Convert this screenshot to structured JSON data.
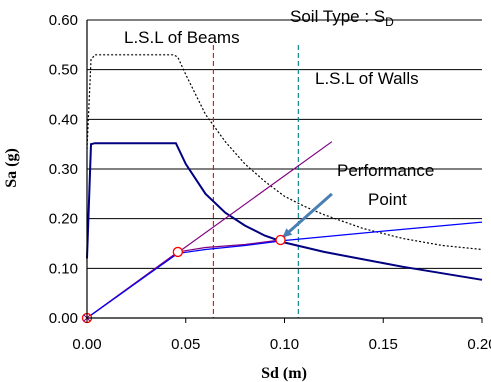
{
  "chart_data": {
    "type": "line",
    "xlabel": "Sd (m)",
    "ylabel": "Sa (g)",
    "xlim": [
      0,
      0.2
    ],
    "ylim": [
      0,
      0.6
    ],
    "x_ticks": [
      "0.00",
      "0.05",
      "0.10",
      "0.15",
      "0.20"
    ],
    "y_ticks": [
      "0.00",
      "0.10",
      "0.20",
      "0.30",
      "0.40",
      "0.50",
      "0.60"
    ],
    "grid": "horizontal",
    "annotations": {
      "soil_type": "Soil Type : S",
      "soil_type_sub": "D",
      "lsl_beams": "L.S.L of Beams",
      "lsl_walls": "L.S.L of Walls",
      "performance_point_line1": "Performance",
      "performance_point_line2": "Point"
    },
    "vlines": [
      {
        "name": "lsl_beams",
        "x": 0.064,
        "color": "#ff0000"
      },
      {
        "name": "lsl_walls",
        "x": 0.107,
        "color": "#008080"
      }
    ],
    "series": [
      {
        "key": "spectrum_dotted",
        "color": "#000000",
        "dash": "2,2",
        "points": [
          [
            0,
            0.34
          ],
          [
            0.002,
            0.52
          ],
          [
            0.004,
            0.53
          ],
          [
            0.044,
            0.53
          ],
          [
            0.046,
            0.525
          ],
          [
            0.05,
            0.49
          ],
          [
            0.06,
            0.41
          ],
          [
            0.07,
            0.355
          ],
          [
            0.08,
            0.31
          ],
          [
            0.09,
            0.275
          ],
          [
            0.1,
            0.245
          ],
          [
            0.11,
            0.225
          ],
          [
            0.12,
            0.208
          ],
          [
            0.14,
            0.18
          ],
          [
            0.16,
            0.16
          ],
          [
            0.18,
            0.146
          ],
          [
            0.2,
            0.138
          ]
        ]
      },
      {
        "key": "spectrum_reduced",
        "color": "#000080",
        "points": [
          [
            0,
            0.12
          ],
          [
            0.002,
            0.35
          ],
          [
            0.004,
            0.352
          ],
          [
            0.045,
            0.352
          ],
          [
            0.05,
            0.31
          ],
          [
            0.06,
            0.25
          ],
          [
            0.07,
            0.212
          ],
          [
            0.08,
            0.186
          ],
          [
            0.09,
            0.166
          ],
          [
            0.1,
            0.152
          ],
          [
            0.12,
            0.133
          ],
          [
            0.14,
            0.118
          ],
          [
            0.16,
            0.103
          ],
          [
            0.18,
            0.09
          ],
          [
            0.2,
            0.077
          ]
        ]
      },
      {
        "key": "initial_stiffness",
        "color": "#800080",
        "points": [
          [
            0,
            0
          ],
          [
            0.124,
            0.355
          ]
        ]
      },
      {
        "key": "capacity_purple",
        "color": "#800080",
        "points": [
          [
            0,
            0
          ],
          [
            0.046,
            0.133
          ],
          [
            0.06,
            0.142
          ],
          [
            0.08,
            0.148
          ],
          [
            0.098,
            0.157
          ]
        ]
      },
      {
        "key": "capacity_blue",
        "color": "#0000ff",
        "points": [
          [
            0,
            0
          ],
          [
            0.046,
            0.13
          ],
          [
            0.06,
            0.138
          ],
          [
            0.08,
            0.146
          ],
          [
            0.1,
            0.156
          ],
          [
            0.15,
            0.175
          ],
          [
            0.2,
            0.193
          ]
        ]
      }
    ],
    "markers": [
      {
        "x": 0,
        "y": 0,
        "style": "circle-x"
      },
      {
        "x": 0.046,
        "y": 0.133,
        "style": "circle"
      },
      {
        "x": 0.098,
        "y": 0.157,
        "style": "circle"
      }
    ],
    "arrow": {
      "from": [
        0.124,
        0.25
      ],
      "to": [
        0.099,
        0.162
      ],
      "color": "#4a7fb5"
    }
  }
}
